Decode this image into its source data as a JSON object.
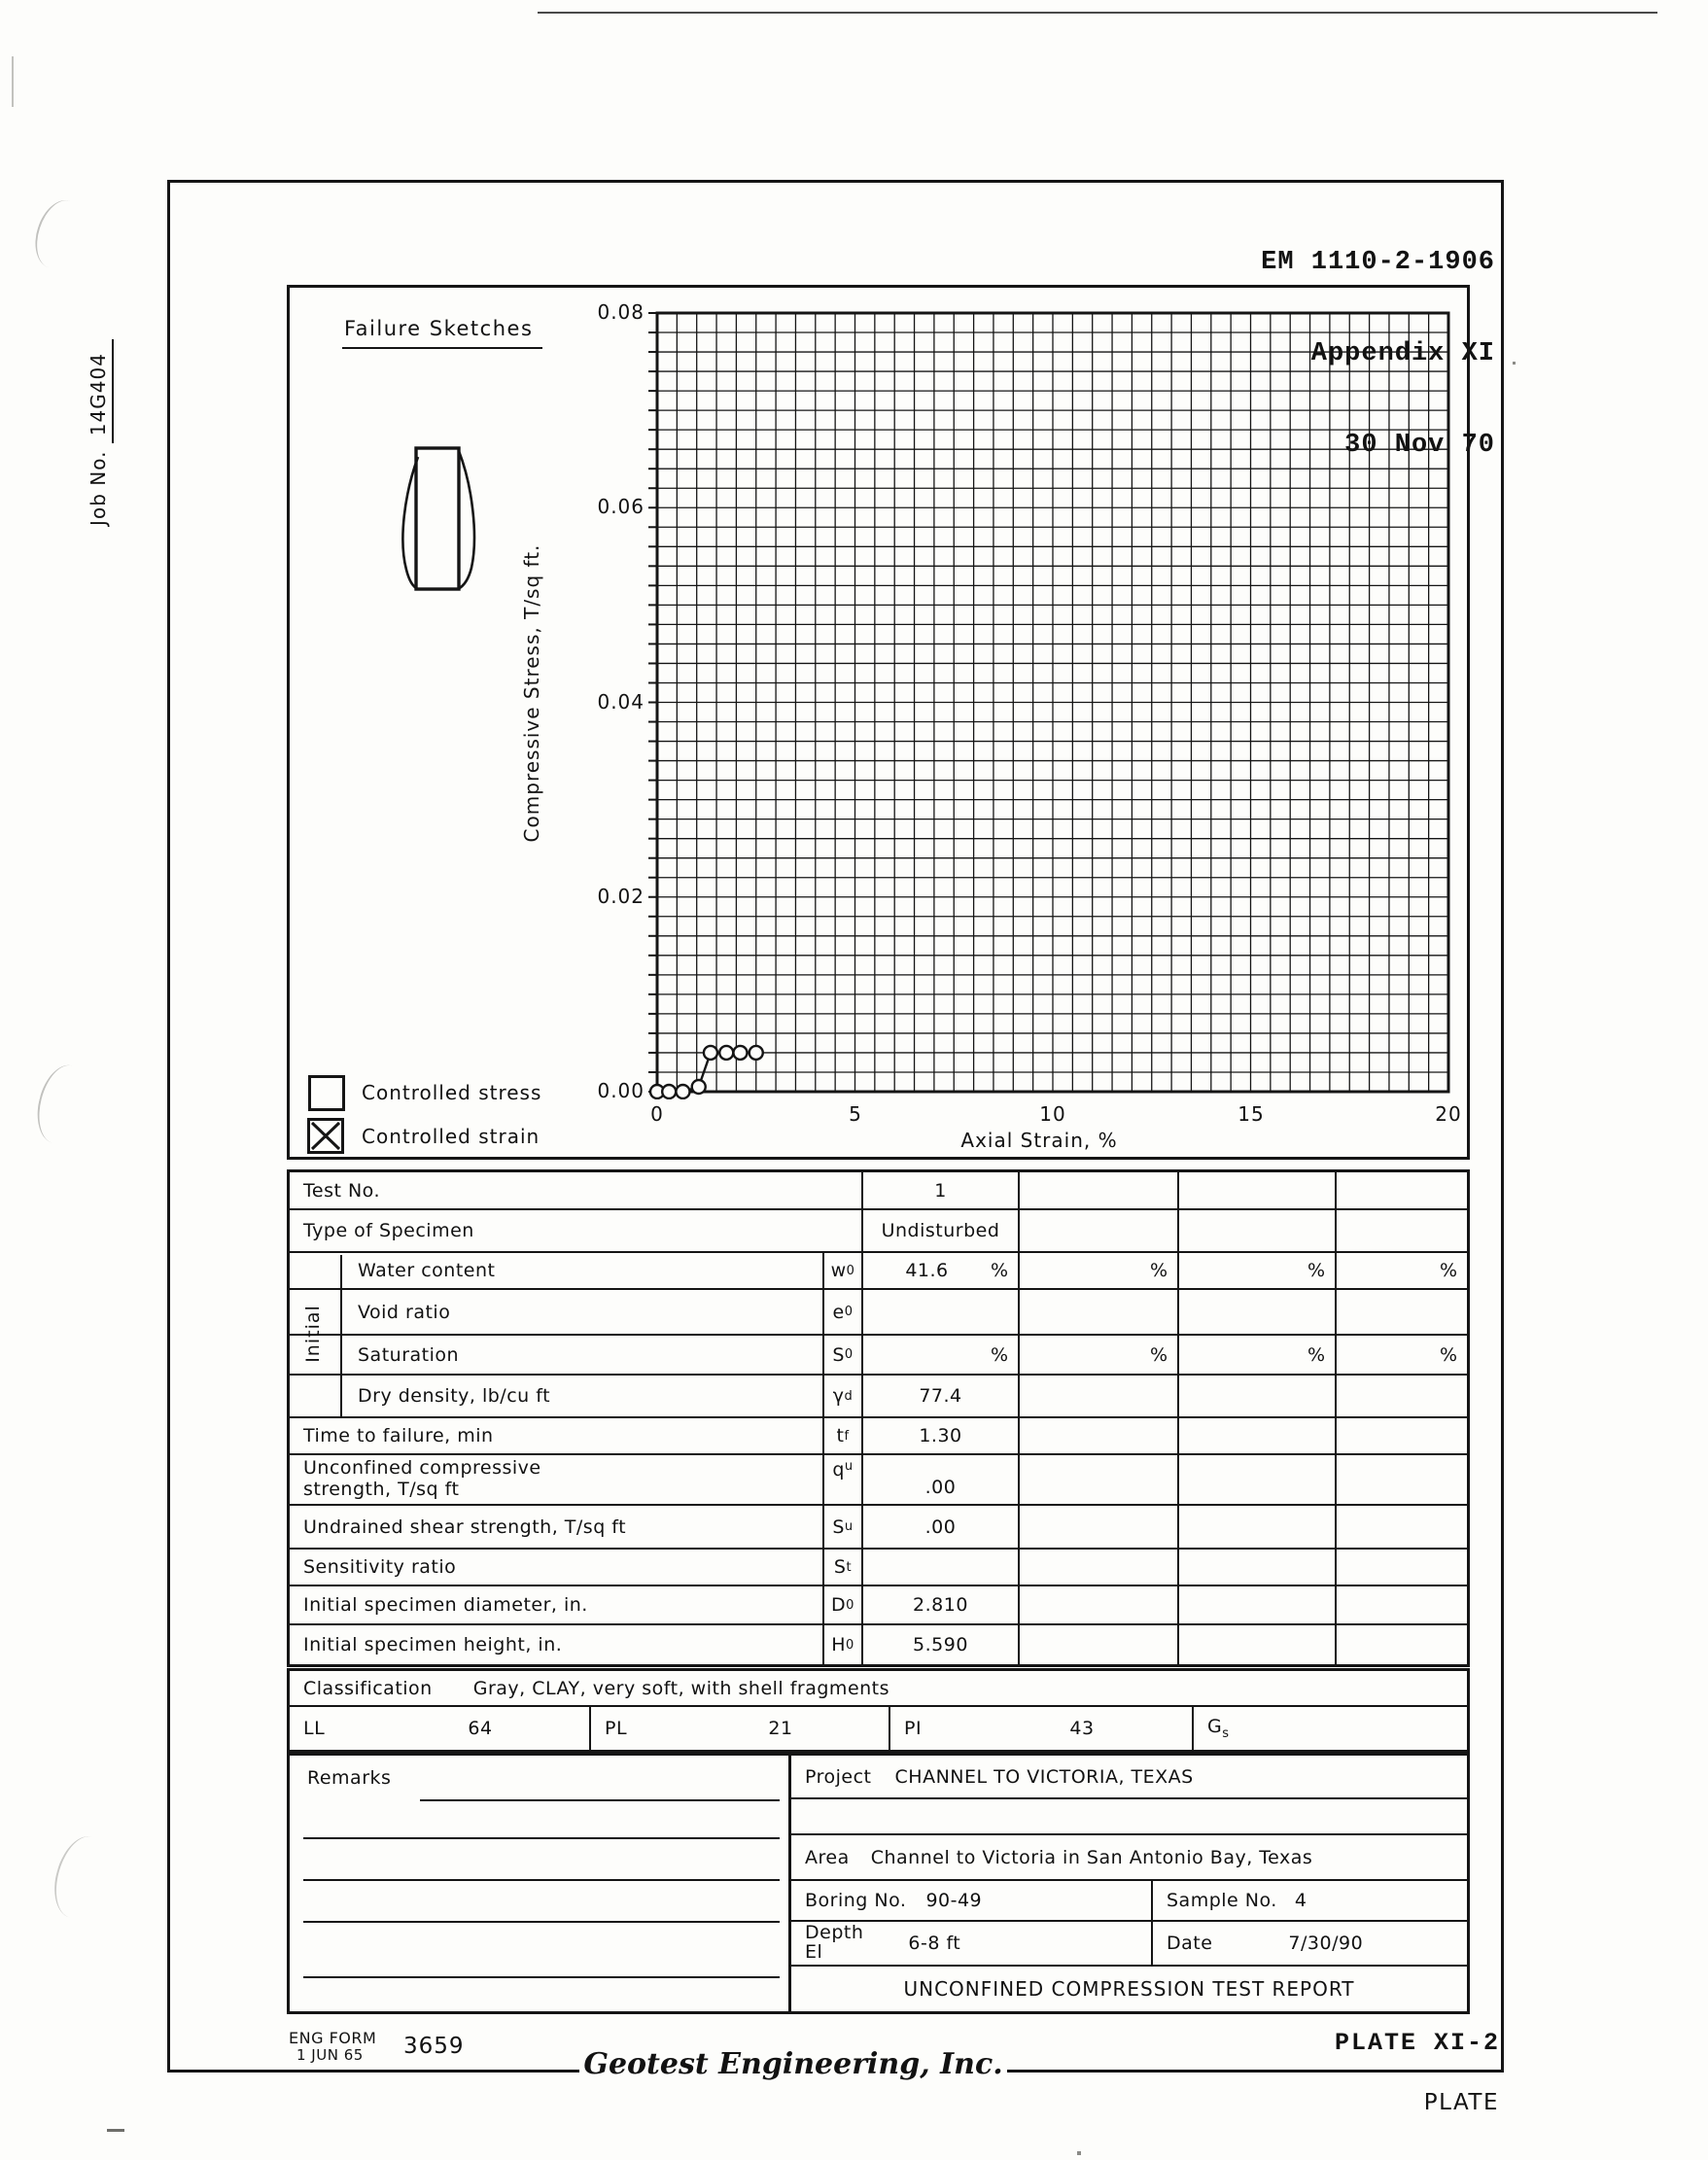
{
  "document": {
    "top_right_lines": [
      "EM 1110-2-1906",
      "Appendix XI",
      "30 Nov 70"
    ],
    "job_no": {
      "label": "Job No.",
      "value": "14G404"
    }
  },
  "chart": {
    "title": "Failure Sketches",
    "legend": [
      {
        "label": "Controlled stress",
        "checked": false
      },
      {
        "label": "Controlled strain",
        "checked": true
      }
    ]
  },
  "chart_data": {
    "type": "line",
    "title": "Failure Sketches (specimen sketch at left); stress-strain curve for Test 1",
    "xlabel": "Axial Strain, %",
    "ylabel": "Compressive Stress, T/sq ft.",
    "xlim": [
      0,
      20
    ],
    "ylim": [
      0,
      0.08
    ],
    "xticks": [
      "0",
      "5",
      "10",
      "15",
      "20"
    ],
    "yticks": [
      "0.08",
      "0.06",
      "0.04",
      "0.02",
      "0.00"
    ],
    "minor_grid_step_x": 0.5,
    "minor_grid_step_y": 0.002,
    "grid": "on",
    "legend_position": "bottom-left",
    "series": [
      {
        "name": "Test 1 (controlled strain)",
        "marker": "open-circle",
        "points": [
          [
            0,
            0
          ],
          [
            0.3,
            0
          ],
          [
            0.65,
            0
          ],
          [
            1.05,
            0.0005
          ],
          [
            1.35,
            0.004
          ],
          [
            1.75,
            0.004
          ],
          [
            2.1,
            0.004
          ],
          [
            2.5,
            0.004
          ]
        ]
      }
    ]
  },
  "table": {
    "test_no": {
      "label": "Test No.",
      "values": [
        "1",
        "",
        "",
        ""
      ]
    },
    "type_of_specimen": {
      "label": "Type of Specimen",
      "values": [
        "Undisturbed",
        "",
        "",
        ""
      ]
    },
    "initial_group_label": "Initial",
    "water_content": {
      "label": "Water content",
      "sym": "w",
      "sym_sub": "0",
      "values": [
        "41.6",
        "",
        "",
        ""
      ],
      "unit": "%"
    },
    "void_ratio": {
      "label": "Void ratio",
      "sym": "e",
      "sym_sub": "0",
      "values": [
        "",
        "",
        "",
        ""
      ]
    },
    "saturation": {
      "label": "Saturation",
      "sym": "S",
      "sym_sub": "0",
      "values": [
        "",
        "",
        "",
        ""
      ],
      "unit": "%"
    },
    "dry_density": {
      "label": "Dry density, lb/cu ft",
      "sym": "γ",
      "sym_sub": "d",
      "values": [
        "77.4",
        "",
        "",
        ""
      ]
    },
    "time_to_failure": {
      "label": "Time to failure, min",
      "sym": "t",
      "sym_sub": "f",
      "values": [
        "1.30",
        "",
        "",
        ""
      ]
    },
    "unconfined_strength": {
      "label_line1": "Unconfined compressive",
      "label_line2": "strength, T/sq ft",
      "sym": "q",
      "sym_sub": "u",
      "values": [
        ".00",
        "",
        "",
        ""
      ]
    },
    "undrained_strength": {
      "label": "Undrained shear strength, T/sq ft",
      "sym": "S",
      "sym_sub": "u",
      "values": [
        ".00",
        "",
        "",
        ""
      ]
    },
    "sensitivity_ratio": {
      "label": "Sensitivity ratio",
      "sym": "S",
      "sym_sub": "t",
      "values": [
        "",
        "",
        "",
        ""
      ]
    },
    "initial_diameter": {
      "label": "Initial specimen diameter, in.",
      "sym": "D",
      "sym_sub": "0",
      "values": [
        "2.810",
        "",
        "",
        ""
      ]
    },
    "initial_height": {
      "label": "Initial specimen height, in.",
      "sym": "H",
      "sym_sub": "0",
      "values": [
        "5.590",
        "",
        "",
        ""
      ]
    },
    "classification": {
      "label": "Classification",
      "value": "Gray, CLAY, very soft, with shell fragments"
    },
    "atterberg": {
      "ll_label": "LL",
      "ll": "64",
      "pl_label": "PL",
      "pl": "21",
      "pi_label": "PI",
      "pi": "43",
      "gs_label": "G",
      "gs_sub": "s",
      "gs": ""
    }
  },
  "info": {
    "remarks_label": "Remarks",
    "project": {
      "label": "Project",
      "value": "CHANNEL TO VICTORIA, TEXAS"
    },
    "area": {
      "label": "Area",
      "value": "Channel to Victoria in San Antonio Bay, Texas"
    },
    "boring": {
      "label": "Boring No.",
      "value": "90-49"
    },
    "sample": {
      "label": "Sample No.",
      "value": "4"
    },
    "depth": {
      "label": "Depth",
      "label2": "El",
      "value": "6-8 ft"
    },
    "date": {
      "label": "Date",
      "value": "7/30/90"
    },
    "report_title": "UNCONFINED COMPRESSION TEST REPORT"
  },
  "footer": {
    "eng_form_line1": "ENG FORM",
    "eng_form_line2": "1 JUN 65",
    "form_number": "3659",
    "plate_ref": "PLATE XI-2",
    "company": "Geotest Engineering, Inc.",
    "plate_word": "PLATE"
  },
  "colors": {
    "ink": "#151515",
    "paper": "#fdfdfb"
  }
}
